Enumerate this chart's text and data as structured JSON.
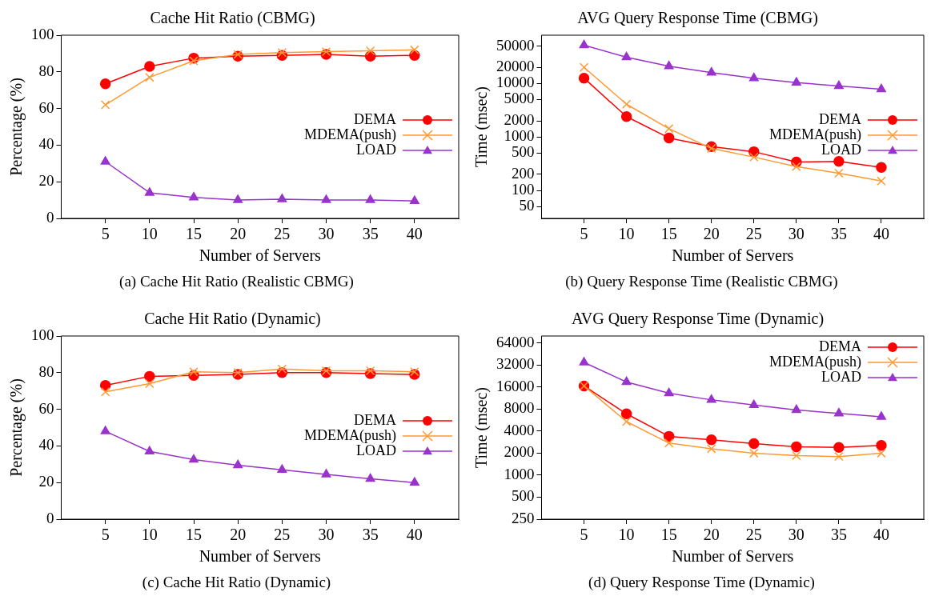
{
  "chart_data": [
    {
      "type": "line",
      "title": "Cache Hit Ratio (CBMG)",
      "xlabel": "Number of Servers",
      "ylabel": "Percentage (%)",
      "x": [
        5,
        10,
        15,
        20,
        25,
        30,
        35,
        40
      ],
      "xlim": [
        0,
        45
      ],
      "xticks": [
        5,
        10,
        15,
        20,
        25,
        30,
        35,
        40
      ],
      "ylim": [
        0,
        100
      ],
      "yticks": [
        0,
        20,
        40,
        60,
        80,
        100
      ],
      "grid": false,
      "legend": "center right",
      "annotations": [
        "(a) Cache Hit Ratio (Realistic CBMG)"
      ],
      "series": [
        {
          "name": "DEMA",
          "color": "#ff0000",
          "marker": "circle",
          "values": [
            73.5,
            83,
            87.5,
            88.5,
            89,
            89.5,
            88.5,
            89
          ]
        },
        {
          "name": "MDEMA(push)",
          "color": "#ff9933",
          "marker": "cross",
          "values": [
            62,
            77,
            86,
            89.5,
            90.5,
            91,
            91.5,
            92
          ]
        },
        {
          "name": "LOAD",
          "color": "#9933cc",
          "marker": "triangle",
          "values": [
            31,
            14,
            11.5,
            10,
            10.5,
            10,
            10,
            9.5
          ]
        }
      ]
    },
    {
      "type": "line",
      "title": "AVG Query Response Time (CBMG)",
      "xlabel": "Number of Servers",
      "ylabel": "Time (msec)",
      "x": [
        5,
        10,
        15,
        20,
        25,
        30,
        35,
        40
      ],
      "xlim": [
        0,
        45
      ],
      "xticks": [
        5,
        10,
        15,
        20,
        25,
        30,
        35,
        40
      ],
      "ylim": [
        30,
        80000
      ],
      "yticks": [
        50,
        100,
        200,
        500,
        1000,
        2000,
        5000,
        10000,
        20000,
        50000
      ],
      "log": true,
      "grid": false,
      "legend": "center right",
      "annotations": [
        "(b) Query Response Time (Realistic CBMG)"
      ],
      "series": [
        {
          "name": "DEMA",
          "color": "#ff0000",
          "marker": "circle",
          "values": [
            12600,
            2400,
            960,
            660,
            530,
            340,
            350,
            270
          ]
        },
        {
          "name": "MDEMA(push)",
          "color": "#ff9933",
          "marker": "cross",
          "values": [
            20000,
            4100,
            1430,
            610,
            420,
            280,
            210,
            150
          ]
        },
        {
          "name": "LOAD",
          "color": "#9933cc",
          "marker": "triangle",
          "values": [
            52000,
            31000,
            21000,
            16000,
            12600,
            10400,
            9000,
            7800
          ]
        }
      ]
    },
    {
      "type": "line",
      "title": "Cache Hit Ratio (Dynamic)",
      "xlabel": "Number of Servers",
      "ylabel": "Percentage (%)",
      "x": [
        5,
        10,
        15,
        20,
        25,
        30,
        35,
        40
      ],
      "xlim": [
        0,
        45
      ],
      "xticks": [
        5,
        10,
        15,
        20,
        25,
        30,
        35,
        40
      ],
      "ylim": [
        0,
        100
      ],
      "yticks": [
        0,
        20,
        40,
        60,
        80,
        100
      ],
      "grid": false,
      "legend": "center right",
      "annotations": [
        "(c) Cache Hit Ratio (Dynamic)"
      ],
      "series": [
        {
          "name": "DEMA",
          "color": "#ff0000",
          "marker": "circle",
          "values": [
            73,
            78,
            78.5,
            79,
            80,
            80,
            79.5,
            79
          ]
        },
        {
          "name": "MDEMA(push)",
          "color": "#ff9933",
          "marker": "cross",
          "values": [
            69.5,
            74,
            80.5,
            80,
            82,
            81,
            81,
            80.5
          ]
        },
        {
          "name": "LOAD",
          "color": "#9933cc",
          "marker": "triangle",
          "values": [
            48,
            37,
            32.5,
            29.5,
            27,
            24.5,
            22,
            20
          ]
        }
      ]
    },
    {
      "type": "line",
      "title": "AVG Query Response Time (Dynamic)",
      "xlabel": "Number of Servers",
      "ylabel": "Time (msec)",
      "x": [
        5,
        10,
        15,
        20,
        25,
        30,
        35,
        40
      ],
      "xlim": [
        0,
        45
      ],
      "xticks": [
        5,
        10,
        15,
        20,
        25,
        30,
        35,
        40
      ],
      "ylim": [
        250,
        80000
      ],
      "yticks": [
        250,
        500,
        1000,
        2000,
        4000,
        8000,
        16000,
        32000,
        64000
      ],
      "log": true,
      "grid": false,
      "legend": "top right",
      "annotations": [
        "(d) Query Response Time (Dynamic)"
      ],
      "series": [
        {
          "name": "DEMA",
          "color": "#ff0000",
          "marker": "circle",
          "values": [
            16600,
            6900,
            3400,
            3050,
            2700,
            2450,
            2400,
            2550
          ]
        },
        {
          "name": "MDEMA(push)",
          "color": "#ff9933",
          "marker": "cross",
          "values": [
            16600,
            5400,
            2750,
            2300,
            2000,
            1850,
            1800,
            2000
          ]
        },
        {
          "name": "LOAD",
          "color": "#9933cc",
          "marker": "triangle",
          "values": [
            34800,
            18800,
            13200,
            10700,
            9100,
            7800,
            7000,
            6300
          ]
        }
      ]
    }
  ]
}
